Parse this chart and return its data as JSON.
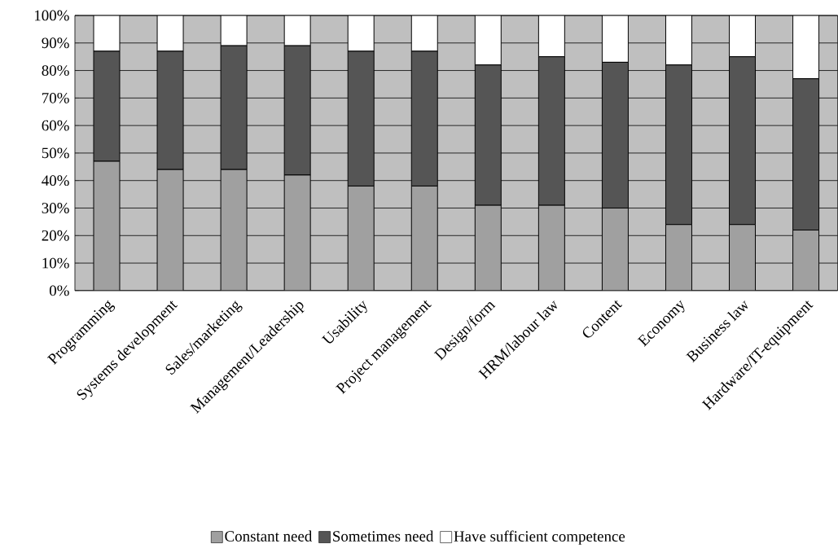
{
  "chart_data": {
    "type": "bar",
    "stacked": true,
    "categories": [
      "Programming",
      "Systems development",
      "Sales/marketing",
      "Management/Leadership",
      "Usability",
      "Project management",
      "Design/form",
      "HRM/labour law",
      "Content",
      "Economy",
      "Business law",
      "Hardware/IT-equipment"
    ],
    "series": [
      {
        "name": "Constant need",
        "color": "#a0a0a0",
        "values": [
          47,
          44,
          44,
          42,
          38,
          38,
          31,
          31,
          30,
          24,
          24,
          22
        ]
      },
      {
        "name": "Sometimes need",
        "color": "#555555",
        "values": [
          40,
          43,
          45,
          47,
          49,
          49,
          51,
          54,
          53,
          58,
          61,
          55
        ]
      },
      {
        "name": "Have sufficient competence",
        "color": "#ffffff",
        "values": [
          13,
          13,
          11,
          11,
          13,
          13,
          18,
          15,
          17,
          18,
          15,
          23
        ]
      }
    ],
    "ylim": [
      0,
      100
    ],
    "yticks": [
      {
        "value": 0,
        "label": "0%"
      },
      {
        "value": 10,
        "label": "10%"
      },
      {
        "value": 20,
        "label": "20%"
      },
      {
        "value": 30,
        "label": "30%"
      },
      {
        "value": 40,
        "label": "40%"
      },
      {
        "value": 50,
        "label": "50%"
      },
      {
        "value": 60,
        "label": "60%"
      },
      {
        "value": 70,
        "label": "70%"
      },
      {
        "value": 80,
        "label": "80%"
      },
      {
        "value": 90,
        "label": "90%"
      },
      {
        "value": 100,
        "label": "100%"
      }
    ],
    "grid": "y",
    "legend": "bottom"
  }
}
